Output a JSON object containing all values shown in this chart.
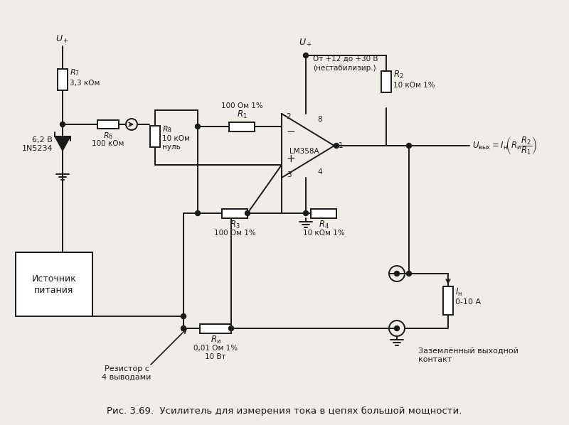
{
  "bg_color": "#f0ede8",
  "line_color": "#1a1a1a",
  "lw": 1.4,
  "title": "Рис. 3.69.  Усилитель для измерения тока в цепях большой мощности.",
  "title_fs": 9.5,
  "components": {
    "R1": {
      "label": "$R_1$",
      "value": "100 Ом 1%"
    },
    "R2": {
      "label": "$R_2$",
      "value": "10 кОм 1%"
    },
    "R3": {
      "label": "$R_3$",
      "value": "100 Ом 1%"
    },
    "R4": {
      "label": "$R_4$",
      "value": "10 кОм 1%"
    },
    "R6": {
      "label": "$R_6$",
      "value": "100 кОм"
    },
    "R7": {
      "label": "$R_7$",
      "value": "3,3 кОм"
    },
    "R8": {
      "label": "$R_8$",
      "value": "10 кОм",
      "extra": "нуль"
    },
    "Ri": {
      "label": "$R_{\\rm и}$",
      "value": "0,01 Ом 1%",
      "extra": "10 Вт"
    },
    "zener": {
      "label": "6,2 В",
      "part": "1N5234"
    },
    "opamp": {
      "label": "LM358A"
    },
    "Uplus_top": {
      "label": "$U_+$"
    },
    "Uplus_left": {
      "label": "$U_+$"
    },
    "supply_range": "От +12 до +30 В",
    "supply_note": "(нестабилизир.)",
    "psu_line1": "Источник",
    "psu_line2": "питания",
    "resistor_note1": "Резистор с",
    "resistor_note2": "4 выводами",
    "ground_label": "Заземлённый выходной",
    "ground_label2": "контакт",
    "load_label": "$I_{\\rm н}$",
    "load_value": "0-10 А",
    "formula": "$U_{\\rm вых}{=}I_{\\rm н}\\!\\left(R_{\\rm и}\\dfrac{R_2}{R_1}\\right)$"
  }
}
